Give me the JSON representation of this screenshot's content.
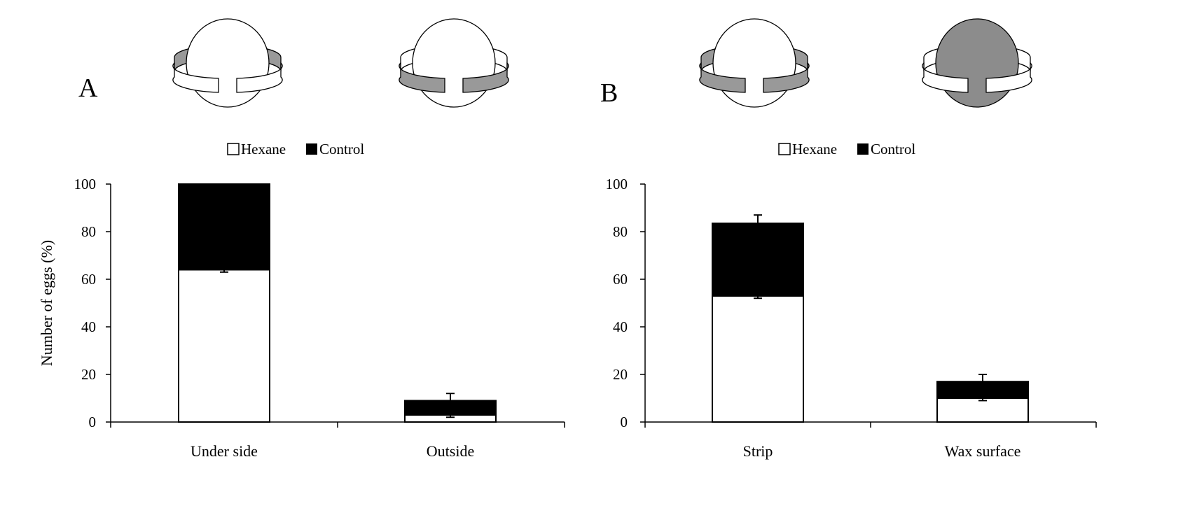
{
  "panels": [
    {
      "label": "A",
      "ylabel": "Number of eggs (%)",
      "legend": [
        {
          "name": "Hexane",
          "color": "#ffffff"
        },
        {
          "name": "Control",
          "color": "#000000"
        }
      ],
      "icons": [
        "sphere-with-inner-shaded-ring",
        "sphere-with-outer-shaded-ring"
      ]
    },
    {
      "label": "B",
      "ylabel": "",
      "legend": [
        {
          "name": "Hexane",
          "color": "#ffffff"
        },
        {
          "name": "Control",
          "color": "#000000"
        }
      ],
      "icons": [
        "sphere-with-shaded-strip",
        "shaded-sphere-with-white-strip"
      ]
    }
  ],
  "chart_data": [
    {
      "type": "bar",
      "stacked": true,
      "panel": "A",
      "categories": [
        "Under side",
        "Outside"
      ],
      "series": [
        {
          "name": "Hexane",
          "values": [
            64,
            3
          ],
          "color": "#ffffff"
        },
        {
          "name": "Control",
          "values": [
            36,
            6
          ],
          "color": "#000000"
        }
      ],
      "error_top": [
        0,
        12
      ],
      "error_hexane": [
        63,
        2
      ],
      "ylim": [
        0,
        100
      ],
      "yticks": [
        0,
        20,
        40,
        60,
        80,
        100
      ],
      "xlabel": "",
      "ylabel": "Number of eggs (%)",
      "legend_position": "top-center",
      "grid": false
    },
    {
      "type": "bar",
      "stacked": true,
      "panel": "B",
      "categories": [
        "Strip",
        "Wax surface"
      ],
      "series": [
        {
          "name": "Hexane",
          "values": [
            53,
            10
          ],
          "color": "#ffffff"
        },
        {
          "name": "Control",
          "values": [
            30.5,
            7
          ],
          "color": "#000000"
        }
      ],
      "error_top": [
        87,
        20
      ],
      "error_hexane": [
        52,
        9
      ],
      "ylim": [
        0,
        100
      ],
      "yticks": [
        0,
        20,
        40,
        60,
        80,
        100
      ],
      "xlabel": "",
      "ylabel": "",
      "legend_position": "top-center",
      "grid": false
    }
  ]
}
